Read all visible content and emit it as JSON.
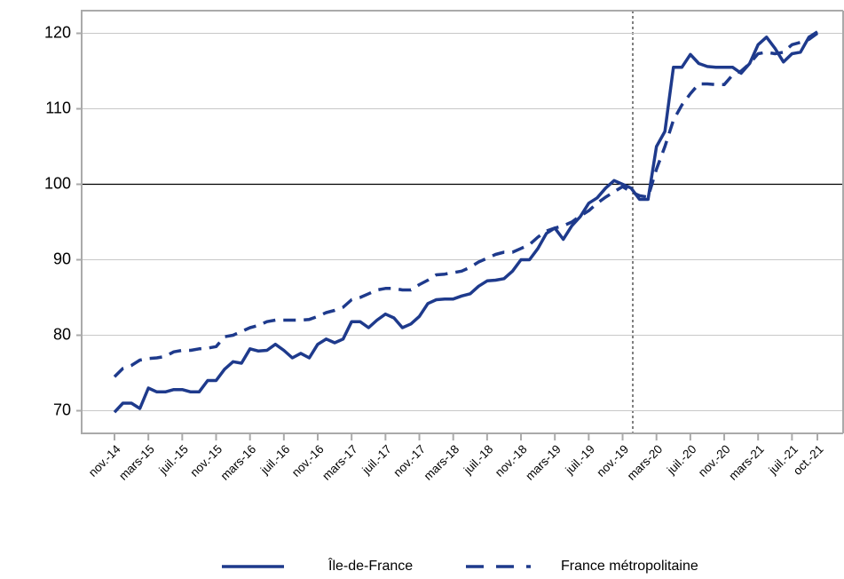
{
  "chart_data": {
    "type": "line",
    "categories": [
      "nov.-14",
      null,
      null,
      null,
      "mars-15",
      null,
      null,
      null,
      "juil.-15",
      null,
      null,
      null,
      "nov.-15",
      null,
      null,
      null,
      "mars-16",
      null,
      null,
      null,
      "juil.-16",
      null,
      null,
      null,
      "nov.-16",
      null,
      null,
      null,
      "mars-17",
      null,
      null,
      null,
      "juil.-17",
      null,
      null,
      null,
      "nov.-17",
      null,
      null,
      null,
      "mars-18",
      null,
      null,
      null,
      "juil.-18",
      null,
      null,
      null,
      "nov.-18",
      null,
      null,
      null,
      "mars-19",
      null,
      null,
      null,
      "juil.-19",
      null,
      null,
      null,
      "nov.-19",
      null,
      null,
      null,
      "mars-20",
      null,
      null,
      null,
      "juil.-20",
      null,
      null,
      null,
      "nov.-20",
      null,
      null,
      null,
      "mars-21",
      null,
      null,
      null,
      "juil.-21",
      null,
      null,
      "oct.-21"
    ],
    "series": [
      {
        "name": "Île-de-France",
        "color": "#1e3a8c",
        "dash": "solid",
        "values": [
          69.8,
          71,
          71,
          70.3,
          73,
          72.5,
          72.5,
          72.8,
          72.8,
          72.5,
          72.5,
          74,
          74,
          75.5,
          76.5,
          76.3,
          78.2,
          77.9,
          78,
          78.8,
          78,
          77,
          77.6,
          77,
          78.8,
          79.5,
          79,
          79.5,
          81.8,
          81.8,
          81,
          82,
          82.8,
          82.3,
          81,
          81.5,
          82.5,
          84.2,
          84.7,
          84.8,
          84.8,
          85.2,
          85.5,
          86.5,
          87.2,
          87.3,
          87.5,
          88.5,
          90,
          90,
          91.5,
          93.5,
          94.2,
          92.7,
          94.5,
          95.7,
          97.5,
          98.2,
          99.5,
          100.5,
          100,
          99.5,
          98,
          98,
          105,
          107,
          115.5,
          115.5,
          117.2,
          116,
          115.6,
          115.5,
          115.5,
          115.5,
          114.7,
          116,
          118.5,
          119.5,
          118,
          116.2,
          117.3,
          117.5,
          119.5,
          120.2
        ]
      },
      {
        "name": "France métropolitaine",
        "color": "#1e3a8c",
        "dash": "dashed",
        "values": [
          74.5,
          75.6,
          76,
          76.7,
          76.9,
          77,
          77.2,
          77.8,
          78,
          78,
          78.2,
          78.3,
          78.5,
          79.8,
          80,
          80.5,
          81,
          81.3,
          81.8,
          82,
          82,
          82,
          82,
          82.1,
          82.5,
          83,
          83.3,
          83.7,
          84.7,
          85,
          85.5,
          86,
          86.2,
          86.2,
          86,
          86,
          86.7,
          87.3,
          88,
          88.1,
          88.3,
          88.5,
          89,
          89.7,
          90.2,
          90.7,
          91,
          91,
          91.5,
          92,
          93,
          93.8,
          94.2,
          94.5,
          95,
          95.8,
          96.5,
          97.5,
          98.3,
          99,
          99.7,
          99,
          98.5,
          98.3,
          102,
          105,
          108.5,
          110.5,
          112,
          113.3,
          113.3,
          113.2,
          113.2,
          114.5,
          115,
          116,
          117.3,
          117.5,
          117.3,
          117.5,
          118.5,
          118.8,
          119.2,
          120
        ]
      }
    ],
    "ylim": [
      67,
      123
    ],
    "yticks": [
      70,
      80,
      90,
      100,
      110,
      120
    ],
    "reference_line": 100,
    "grid": true,
    "legend": "bottom"
  }
}
